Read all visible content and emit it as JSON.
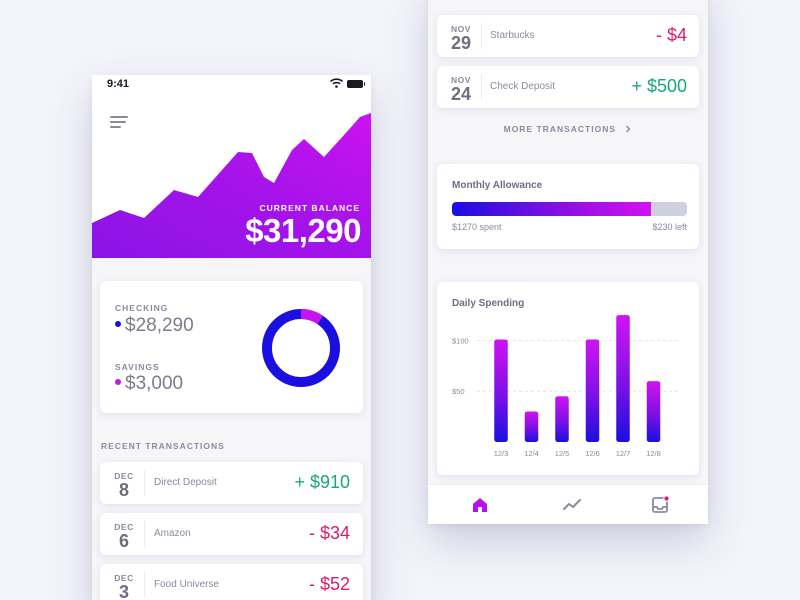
{
  "status": {
    "time": "9:41"
  },
  "hero": {
    "balance_label": "CURRENT BALANCE",
    "balance_value": "$31,290"
  },
  "accounts": {
    "checking_label": "CHECKING",
    "checking_value": "$28,290",
    "savings_label": "SAVINGS",
    "savings_value": "$3,000",
    "checking_color": "#1a0fe0",
    "savings_color": "#c714ee",
    "savings_fraction": 0.096
  },
  "recent": {
    "label": "RECENT TRANSACTIONS",
    "items": [
      {
        "month": "DEC",
        "day": "8",
        "name": "Direct Deposit",
        "amount": "+ $910",
        "type": "pos"
      },
      {
        "month": "DEC",
        "day": "6",
        "name": "Amazon",
        "amount": "- $34",
        "type": "neg"
      },
      {
        "month": "DEC",
        "day": "3",
        "name": "Food Universe",
        "amount": "- $52",
        "type": "neg"
      }
    ]
  },
  "right": {
    "items": [
      {
        "month": "NOV",
        "day": "29",
        "name": "Starbucks",
        "amount": "- $4",
        "type": "neg"
      },
      {
        "month": "NOV",
        "day": "24",
        "name": "Check Deposit",
        "amount": "+ $500",
        "type": "pos"
      }
    ],
    "more_label": "MORE TRANSACTIONS",
    "allowance": {
      "title": "Monthly Allowance",
      "spent": "$1270 spent",
      "left": "$230 left",
      "fraction": 0.8467
    },
    "spending": {
      "title": "Daily Spending",
      "y_labels": [
        "$100",
        "$50"
      ]
    }
  },
  "colors": {
    "brand_blue": "#1a0fe0",
    "brand_purple": "#c714ee",
    "positive": "#16a87a",
    "negative": "#d81b6f"
  },
  "icons": [
    "menu-icon",
    "wifi-icon",
    "battery-icon",
    "chevron-right-icon",
    "home-icon",
    "trend-icon",
    "inbox-icon"
  ],
  "chart_data": {
    "type": "bar",
    "title": "Daily Spending",
    "categories": [
      "12/3",
      "12/4",
      "12/5",
      "12/6",
      "12/7",
      "12/8"
    ],
    "values": [
      101,
      30,
      45,
      101,
      125,
      60
    ],
    "ylim": [
      0,
      130
    ],
    "y_ticks": [
      50,
      100
    ],
    "grid": true
  }
}
